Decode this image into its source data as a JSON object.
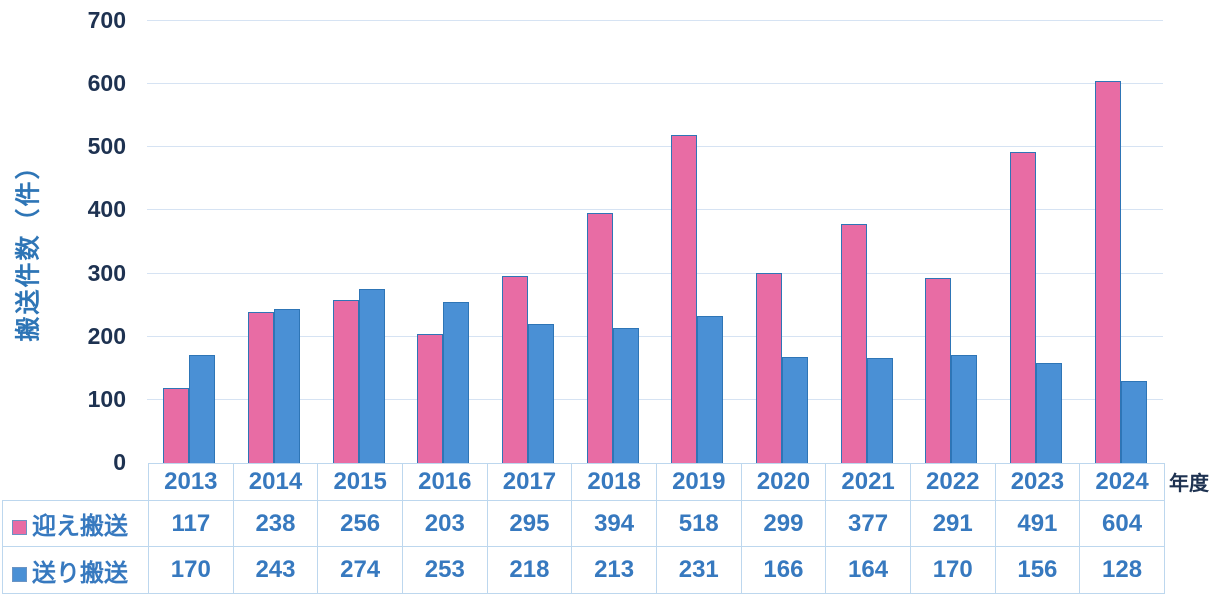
{
  "chart_data": {
    "type": "bar",
    "title": "",
    "categories": [
      "2013",
      "2014",
      "2015",
      "2016",
      "2017",
      "2018",
      "2019",
      "2020",
      "2021",
      "2022",
      "2023",
      "2024"
    ],
    "series": [
      {
        "name": "迎え搬送",
        "color": "#E86CA4",
        "values": [
          117,
          238,
          256,
          203,
          295,
          394,
          518,
          299,
          377,
          291,
          491,
          604
        ]
      },
      {
        "name": "送り搬送",
        "color": "#4A90D5",
        "values": [
          170,
          243,
          274,
          253,
          218,
          213,
          231,
          166,
          164,
          170,
          156,
          128
        ]
      }
    ],
    "xlabel": "年度",
    "ylabel": "搬送件数（件）",
    "ylim": [
      0,
      700
    ],
    "yticks": [
      0,
      100,
      200,
      300,
      400,
      500,
      600,
      700
    ],
    "grid": true,
    "legend_position": "table-left",
    "bar_border_color": "#2E75B6"
  },
  "colors": {
    "background": "#FFFFFF",
    "gridline": "#D6E3F3",
    "table_border": "#BDD7EE",
    "table_text": "#3779BF",
    "axis_tick_text": "#1E3251",
    "ylabel_text": "#2E75B6",
    "xlabel_text": "#1E3251",
    "swatch_border": "#6A94C4"
  }
}
